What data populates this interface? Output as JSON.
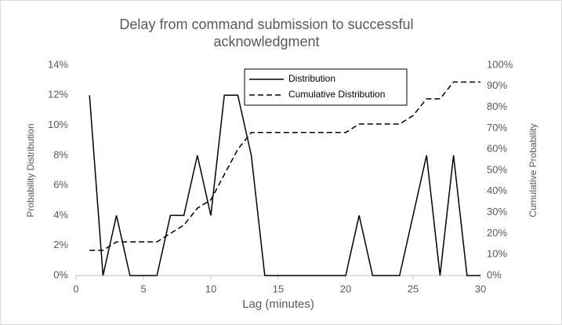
{
  "chart_data": {
    "type": "line",
    "title": "Delay from command submission to successful acknowledgment",
    "x_label": "Lag (minutes)",
    "y_label": "Probability Distribution",
    "y2_label": "Cumulative Probability",
    "x": [
      1,
      2,
      3,
      4,
      5,
      6,
      7,
      8,
      9,
      10,
      11,
      12,
      13,
      14,
      15,
      16,
      17,
      18,
      19,
      20,
      21,
      22,
      23,
      24,
      25,
      26,
      27,
      28,
      29,
      30
    ],
    "series": [
      {
        "name": "Distribution",
        "color": "#000000",
        "style": "solid",
        "values": [
          12,
          0,
          4,
          0,
          0,
          0,
          4,
          4,
          8,
          4,
          12,
          12,
          8,
          0,
          0,
          0,
          0,
          0,
          0,
          0,
          4,
          0,
          0,
          0,
          4,
          8,
          0,
          8,
          0,
          0
        ]
      },
      {
        "name": "Cumulative Distribution",
        "color": "#000000",
        "style": "dashed",
        "axis": "y2",
        "values": [
          12,
          12,
          16,
          16,
          16,
          16,
          20,
          24,
          32,
          36,
          48,
          60,
          68,
          68,
          68,
          68,
          68,
          68,
          68,
          68,
          72,
          72,
          72,
          72,
          76,
          84,
          84,
          92,
          92,
          92
        ]
      }
    ],
    "xlim": [
      0,
      30
    ],
    "xticks": [
      0,
      5,
      10,
      15,
      20,
      25,
      30
    ],
    "ylim": [
      0,
      14
    ],
    "yticks": [
      {
        "value": 0,
        "label": "0%"
      },
      {
        "value": 2,
        "label": "2%"
      },
      {
        "value": 4,
        "label": "4%"
      },
      {
        "value": 6,
        "label": "6%"
      },
      {
        "value": 8,
        "label": "8%"
      },
      {
        "value": 10,
        "label": "10%"
      },
      {
        "value": 12,
        "label": "12%"
      },
      {
        "value": 14,
        "label": "14%"
      }
    ],
    "y2lim": [
      0,
      100
    ],
    "y2ticks": [
      {
        "value": 0,
        "label": "0%"
      },
      {
        "value": 10,
        "label": "10%"
      },
      {
        "value": 20,
        "label": "20%"
      },
      {
        "value": 30,
        "label": "30%"
      },
      {
        "value": 40,
        "label": "40%"
      },
      {
        "value": 50,
        "label": "50%"
      },
      {
        "value": 60,
        "label": "60%"
      },
      {
        "value": 70,
        "label": "70%"
      },
      {
        "value": 80,
        "label": "80%"
      },
      {
        "value": 90,
        "label": "90%"
      },
      {
        "value": 100,
        "label": "100%"
      }
    ],
    "grid": false,
    "legend": "top"
  }
}
